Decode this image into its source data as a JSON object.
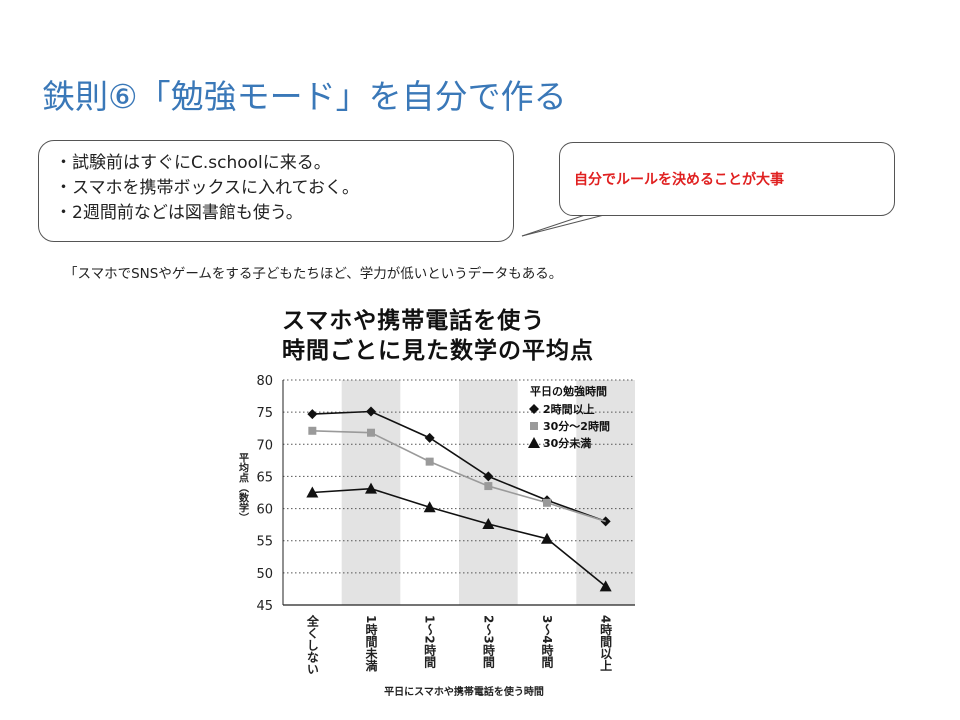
{
  "slide": {
    "title": "鉄則⑥「勉強モード」を自分で作る",
    "bullets": [
      "・試験前はすぐにC.schoolに来る。",
      "・スマホを携帯ボックスに入れておく。",
      "・2週間前などは図書館も使う。"
    ],
    "callout": "自分でルールを決めることが大事",
    "note": "「スマホでSNSやゲームをする子どもたちほど、学力が低いというデータもある。"
  },
  "chart_data": {
    "type": "line",
    "title_lines": [
      "スマホや携帯電話を使う",
      "時間ごとに見た数学の平均点"
    ],
    "xlabel": "平日にスマホや携帯電話を使う時間",
    "ylabel": "平均点（数学）",
    "ylim": [
      45,
      80
    ],
    "yticks": [
      "80",
      "75",
      "70",
      "65",
      "60",
      "55",
      "50",
      "45"
    ],
    "categories": [
      "全くしない",
      "1時間未満",
      "1〜2時間",
      "2〜3時間",
      "3〜4時間",
      "4時間以上"
    ],
    "legend_title": "平日の勉強時間",
    "legend_position": "top-right",
    "series": [
      {
        "name": "2時間以上",
        "marker": "diamond",
        "color": "#111111",
        "values": [
          74.7,
          75.1,
          71.0,
          65.0,
          61.3,
          58.0
        ]
      },
      {
        "name": "30分〜2時間",
        "marker": "square",
        "color": "#9a9a9a",
        "values": [
          72.1,
          71.8,
          67.3,
          63.5,
          60.9,
          null
        ]
      },
      {
        "name": "30分未満",
        "marker": "triangle",
        "color": "#111111",
        "values": [
          62.5,
          63.1,
          60.2,
          57.6,
          55.3,
          47.9
        ]
      }
    ]
  }
}
